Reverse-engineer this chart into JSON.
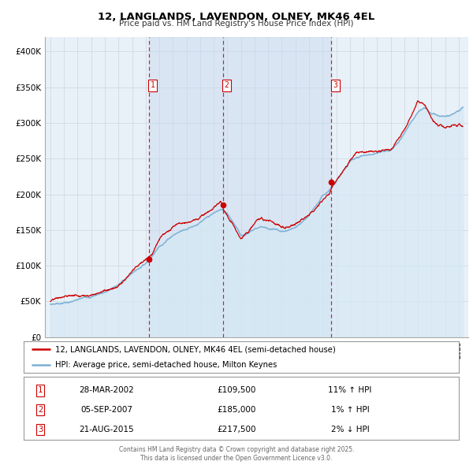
{
  "title": "12, LANGLANDS, LAVENDON, OLNEY, MK46 4EL",
  "subtitle": "Price paid vs. HM Land Registry's House Price Index (HPI)",
  "legend_line1": "12, LANGLANDS, LAVENDON, OLNEY, MK46 4EL (semi-detached house)",
  "legend_line2": "HPI: Average price, semi-detached house, Milton Keynes",
  "footer1": "Contains HM Land Registry data © Crown copyright and database right 2025.",
  "footer2": "This data is licensed under the Open Government Licence v3.0.",
  "sale_color": "#cc0000",
  "hpi_color": "#7ab0d4",
  "hpi_fill_color": "#d6e8f5",
  "background_color": "#e8f0f8",
  "grid_color": "#c8d4e0",
  "dashed_line_color": "#cc0000",
  "ylim": [
    0,
    420000
  ],
  "yticks": [
    0,
    50000,
    100000,
    150000,
    200000,
    250000,
    300000,
    350000,
    400000
  ],
  "ytick_labels": [
    "£0",
    "£50K",
    "£100K",
    "£150K",
    "£200K",
    "£250K",
    "£300K",
    "£350K",
    "£400K"
  ],
  "xlim_start": 1994.6,
  "xlim_end": 2025.7,
  "sale_markers": [
    {
      "year": 2002.23,
      "value": 109500,
      "label": "1"
    },
    {
      "year": 2007.67,
      "value": 185000,
      "label": "2"
    },
    {
      "year": 2015.64,
      "value": 217500,
      "label": "3"
    }
  ],
  "table_rows": [
    {
      "num": "1",
      "date": "28-MAR-2002",
      "price": "£109,500",
      "hpi": "11% ↑ HPI"
    },
    {
      "num": "2",
      "date": "05-SEP-2007",
      "price": "£185,000",
      "hpi": "1% ↑ HPI"
    },
    {
      "num": "3",
      "date": "21-AUG-2015",
      "price": "£217,500",
      "hpi": "2% ↓ HPI"
    }
  ],
  "hpi_waypoints": [
    [
      1995.0,
      46000
    ],
    [
      1996.0,
      49000
    ],
    [
      1997.0,
      52000
    ],
    [
      1998.0,
      57000
    ],
    [
      1999.0,
      64000
    ],
    [
      2000.0,
      74000
    ],
    [
      2001.0,
      90000
    ],
    [
      2002.0,
      105000
    ],
    [
      2003.0,
      130000
    ],
    [
      2004.0,
      148000
    ],
    [
      2005.0,
      158000
    ],
    [
      2006.0,
      168000
    ],
    [
      2007.0,
      178000
    ],
    [
      2007.5,
      183000
    ],
    [
      2008.0,
      178000
    ],
    [
      2008.5,
      165000
    ],
    [
      2009.0,
      148000
    ],
    [
      2009.5,
      152000
    ],
    [
      2010.0,
      158000
    ],
    [
      2010.5,
      162000
    ],
    [
      2011.0,
      160000
    ],
    [
      2011.5,
      158000
    ],
    [
      2012.0,
      155000
    ],
    [
      2012.5,
      157000
    ],
    [
      2013.0,
      160000
    ],
    [
      2013.5,
      165000
    ],
    [
      2014.0,
      173000
    ],
    [
      2014.5,
      185000
    ],
    [
      2015.0,
      198000
    ],
    [
      2015.5,
      208000
    ],
    [
      2016.0,
      222000
    ],
    [
      2016.5,
      235000
    ],
    [
      2017.0,
      247000
    ],
    [
      2017.5,
      254000
    ],
    [
      2018.0,
      257000
    ],
    [
      2018.5,
      258000
    ],
    [
      2019.0,
      258000
    ],
    [
      2019.5,
      260000
    ],
    [
      2020.0,
      262000
    ],
    [
      2020.5,
      272000
    ],
    [
      2021.0,
      285000
    ],
    [
      2021.5,
      303000
    ],
    [
      2022.0,
      318000
    ],
    [
      2022.5,
      322000
    ],
    [
      2023.0,
      313000
    ],
    [
      2023.5,
      308000
    ],
    [
      2024.0,
      307000
    ],
    [
      2024.5,
      312000
    ],
    [
      2025.0,
      318000
    ],
    [
      2025.3,
      322000
    ]
  ],
  "sale_waypoints": [
    [
      1995.0,
      50000
    ],
    [
      1996.0,
      53000
    ],
    [
      1997.0,
      56000
    ],
    [
      1998.0,
      61000
    ],
    [
      1999.0,
      68000
    ],
    [
      2000.0,
      79000
    ],
    [
      2001.0,
      95000
    ],
    [
      2002.0,
      109500
    ],
    [
      2002.5,
      120000
    ],
    [
      2003.0,
      138000
    ],
    [
      2004.0,
      158000
    ],
    [
      2005.0,
      168000
    ],
    [
      2006.0,
      178000
    ],
    [
      2007.0,
      188000
    ],
    [
      2007.5,
      197000
    ],
    [
      2007.67,
      185000
    ],
    [
      2008.0,
      174000
    ],
    [
      2008.5,
      158000
    ],
    [
      2009.0,
      142000
    ],
    [
      2009.5,
      148000
    ],
    [
      2010.0,
      158000
    ],
    [
      2010.5,
      165000
    ],
    [
      2011.0,
      163000
    ],
    [
      2011.5,
      161000
    ],
    [
      2012.0,
      158000
    ],
    [
      2012.5,
      160000
    ],
    [
      2013.0,
      163000
    ],
    [
      2013.5,
      168000
    ],
    [
      2014.0,
      175000
    ],
    [
      2014.5,
      188000
    ],
    [
      2015.0,
      202000
    ],
    [
      2015.5,
      212000
    ],
    [
      2015.64,
      217500
    ],
    [
      2016.0,
      228000
    ],
    [
      2016.5,
      242000
    ],
    [
      2017.0,
      255000
    ],
    [
      2017.5,
      263000
    ],
    [
      2018.0,
      262000
    ],
    [
      2018.5,
      260000
    ],
    [
      2019.0,
      257000
    ],
    [
      2019.5,
      261000
    ],
    [
      2020.0,
      264000
    ],
    [
      2020.5,
      275000
    ],
    [
      2021.0,
      290000
    ],
    [
      2021.5,
      308000
    ],
    [
      2022.0,
      325000
    ],
    [
      2022.5,
      320000
    ],
    [
      2023.0,
      305000
    ],
    [
      2023.5,
      295000
    ],
    [
      2024.0,
      292000
    ],
    [
      2024.5,
      295000
    ],
    [
      2025.0,
      300000
    ],
    [
      2025.3,
      295000
    ]
  ]
}
